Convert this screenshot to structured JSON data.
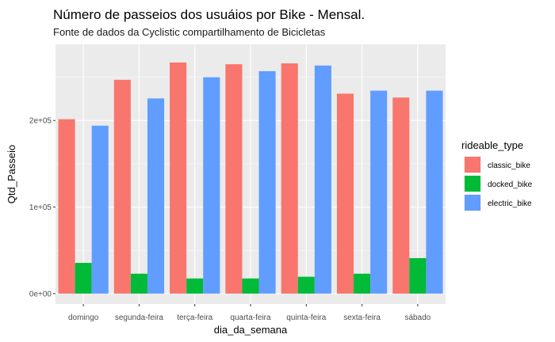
{
  "chart_data": {
    "type": "bar",
    "title": "Número de passeios dos usuáios por Bike - Mensal.",
    "subtitle": "Fonte de dados da Cyclistic compartilhamento de Bicicletas",
    "xlabel": "dia_da_semana",
    "ylabel": "Qtd_Passeio",
    "categories": [
      "domingo",
      "segunda-feira",
      "terça-feira",
      "quarta-feira",
      "quinta-feira",
      "sexta-feira",
      "sábado"
    ],
    "series": [
      {
        "name": "classic_bike",
        "color": "#F8766D",
        "values": [
          201500,
          247000,
          267000,
          265000,
          266000,
          231000,
          226500
        ]
      },
      {
        "name": "docked_bike",
        "color": "#00BA38",
        "values": [
          35500,
          23000,
          17500,
          17500,
          19500,
          23000,
          41000
        ]
      },
      {
        "name": "electric_bike",
        "color": "#619CFF",
        "values": [
          194000,
          225500,
          250000,
          257000,
          263500,
          234500,
          234500
        ]
      }
    ],
    "ylim": [
      -12000,
      288000
    ],
    "yticks": [
      0,
      100000,
      200000
    ],
    "ytick_labels": [
      "0e+00",
      "1e+05",
      "2e+05"
    ],
    "legend_title": "rideable_type",
    "legend_position": "right",
    "grid": true
  }
}
